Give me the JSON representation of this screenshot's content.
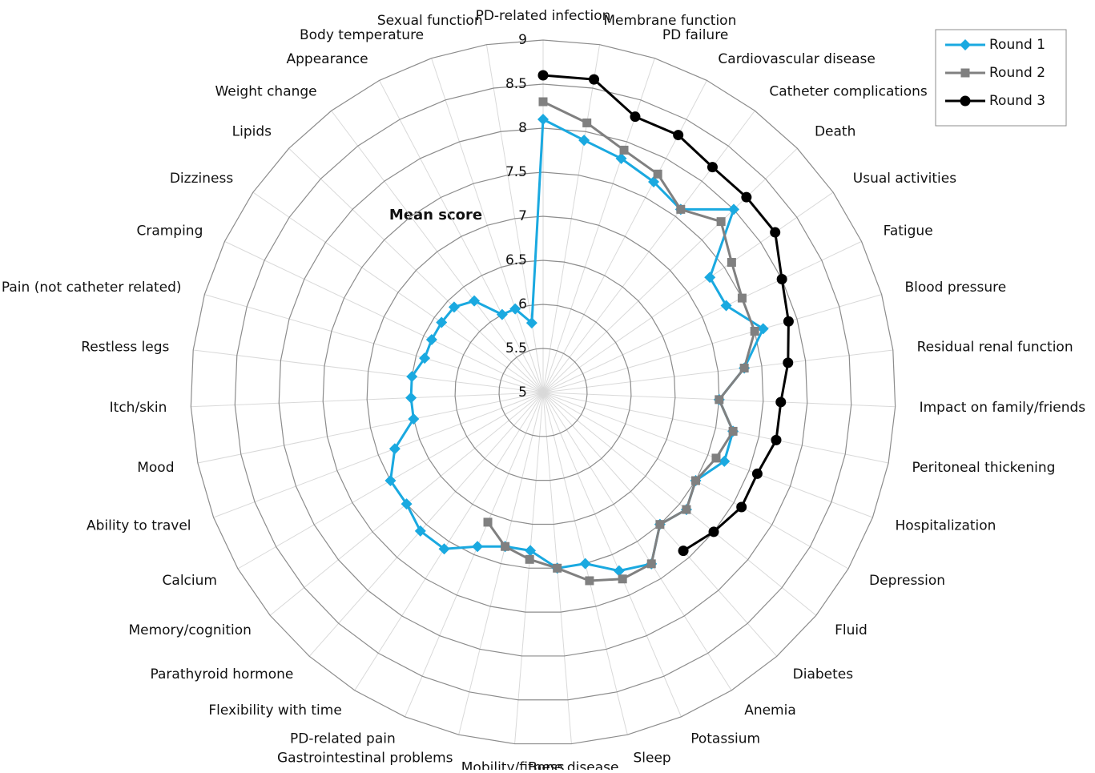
{
  "chart_data": {
    "type": "radar",
    "axis_title": "Mean score",
    "categories": [
      "PD-related infection",
      "Membrane function",
      "PD failure",
      "Cardiovascular disease",
      "Catheter complications",
      "Death",
      "Usual activities",
      "Fatigue",
      "Blood pressure",
      "Residual renal function",
      "Impact on family/friends",
      "Peritoneal thickening",
      "Hospitalization",
      "Depression",
      "Fluid",
      "Diabetes",
      "Anemia",
      "Potassium",
      "Sleep",
      "Bone disease",
      "Mobility/fitness",
      "Gastrointestinal problems",
      "PD-related pain",
      "Flexibility with time",
      "Parathyroid hormone",
      "Memory/cognition",
      "Calcium",
      "Ability to travel",
      "Mood",
      "Itch/skin",
      "Restless legs",
      "Pain (not catheter related)",
      "Cramping",
      "Dizziness",
      "Lipids",
      "Weight change",
      "Appearance",
      "Body temperature",
      "Sexual function"
    ],
    "series": [
      {
        "name": "Round 1",
        "color": "#1aa9e0",
        "marker": "diamond",
        "closed": true,
        "values": [
          8.1,
          7.9,
          7.8,
          7.7,
          7.6,
          8.0,
          7.3,
          7.3,
          7.6,
          7.3,
          7.0,
          7.2,
          7.2,
          7.0,
          7.1,
          7.0,
          7.3,
          7.2,
          7.0,
          7.0,
          6.8,
          6.8,
          6.9,
          7.1,
          7.1,
          7.0,
          7.0,
          6.8,
          6.5,
          6.5,
          6.5,
          6.4,
          6.4,
          6.4,
          6.4,
          6.3,
          6.0,
          6.0,
          5.8
        ]
      },
      {
        "name": "Round 2",
        "color": "#808080",
        "marker": "square",
        "closed": false,
        "values": [
          8.3,
          8.1,
          7.9,
          7.8,
          7.6,
          7.8,
          7.6,
          7.5,
          7.5,
          7.3,
          7.0,
          7.2,
          7.1,
          7.0,
          7.1,
          7.0,
          7.3,
          7.3,
          7.2,
          7.0,
          6.9,
          6.8,
          6.6,
          null,
          null,
          null,
          null,
          null,
          null,
          null,
          null,
          null,
          null,
          null,
          null,
          null,
          null,
          null,
          null
        ]
      },
      {
        "name": "Round 3",
        "color": "#000000",
        "marker": "circle",
        "closed": false,
        "values": [
          8.6,
          8.6,
          8.3,
          8.3,
          8.2,
          8.2,
          8.2,
          8.0,
          7.9,
          7.8,
          7.7,
          7.7,
          7.6,
          7.6,
          7.5,
          7.4,
          null,
          null,
          null,
          null,
          null,
          null,
          null,
          null,
          null,
          null,
          null,
          null,
          null,
          null,
          null,
          null,
          null,
          null,
          null,
          null,
          null,
          null,
          null
        ]
      }
    ],
    "ylim": [
      5,
      9
    ],
    "yticks": [
      5,
      5.5,
      6,
      6.5,
      7,
      7.5,
      8,
      8.5,
      9
    ],
    "grid": true,
    "legend": "top-right"
  }
}
